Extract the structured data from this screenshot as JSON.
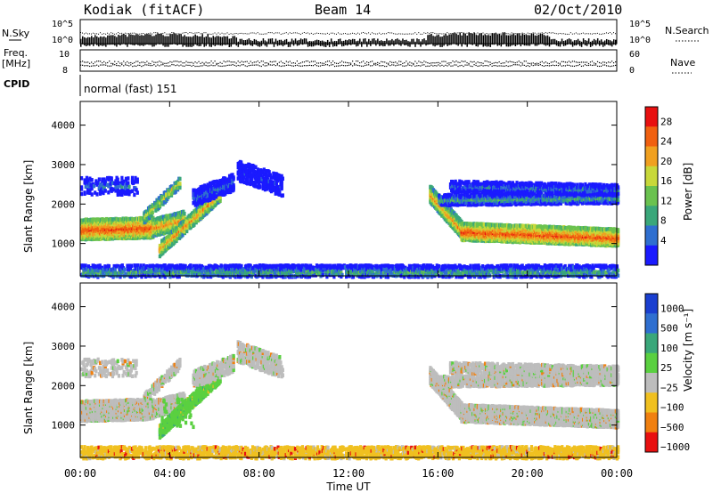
{
  "header": {
    "station": "Kodiak (fitACF)",
    "beam": "Beam 14",
    "date": "02/Oct/2010"
  },
  "top_panel": {
    "left_label_a": "N.Sky",
    "left_label_b": "Freq.",
    "left_label_c": "[MHz]",
    "cpid_label": "CPID",
    "cpid_text": "normal (fast) 151",
    "right_label_a": "N.Search",
    "right_label_b": "Nave",
    "left_ticks_noise": [
      "10^5",
      "10^0"
    ],
    "right_ticks_noise": [
      "10^5",
      "10^0"
    ],
    "left_ticks_freq": [
      "10",
      "8"
    ],
    "right_ticks_nave": [
      "60",
      "0"
    ]
  },
  "colors": {
    "power_scale": [
      "#1a1aff",
      "#2f6fd0",
      "#3aa77a",
      "#6ac24f",
      "#c8d83a",
      "#f0a020",
      "#f06010",
      "#e81010"
    ],
    "velocity_scale": [
      "#1a3fd0",
      "#2f6fd0",
      "#3aa77a",
      "#5ad040",
      "#bdbdbd",
      "#f0c020",
      "#f08010",
      "#e81010"
    ]
  },
  "chart_data": [
    {
      "type": "heatmap",
      "name": "power",
      "ylabel": "Slant Range [km]",
      "colorbar_label": "Power [dB]",
      "colorbar_ticks": [
        "28",
        "24",
        "20",
        "16",
        "12",
        "8",
        "4"
      ],
      "yticks": [
        "4000",
        "3000",
        "2000",
        "1000"
      ],
      "ylim": [
        180,
        4600
      ],
      "xlim": [
        0,
        24
      ],
      "xticks": [
        0,
        4,
        8,
        12,
        16,
        20,
        24
      ]
    },
    {
      "type": "heatmap",
      "name": "velocity",
      "ylabel": "Slant Range [km]",
      "colorbar_label": "Velocity [m s⁻¹]",
      "colorbar_ticks": [
        "1000",
        "500",
        "100",
        "25",
        "−25",
        "−100",
        "−500",
        "−1000"
      ],
      "yticks": [
        "4000",
        "3000",
        "2000",
        "1000"
      ],
      "ylim": [
        180,
        4600
      ],
      "xlim": [
        0,
        24
      ],
      "xticks": [
        0,
        4,
        8,
        12,
        16,
        20,
        24
      ],
      "xticklabels": [
        "00:00",
        "04:00",
        "08:00",
        "12:00",
        "16:00",
        "20:00",
        "00:00"
      ],
      "xlabel": "Time UT"
    }
  ]
}
